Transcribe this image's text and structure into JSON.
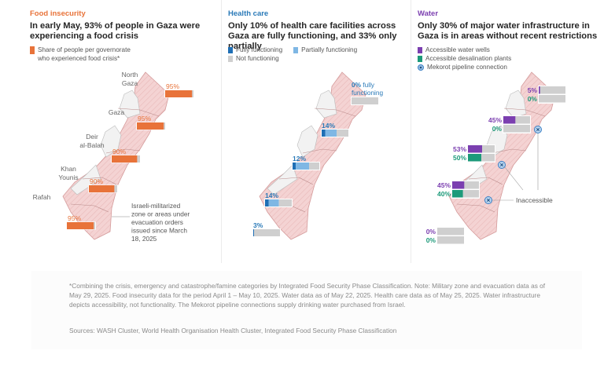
{
  "colors": {
    "food": "#e8733a",
    "health_full": "#1f6fb5",
    "health_partial": "#7fb7e4",
    "not_functioning": "#cfcfcf",
    "water_wells": "#7b3fb0",
    "water_desal": "#1d9a7a",
    "pipeline": "#3b7fc4",
    "map_fill": "#f4d3d3",
    "map_free": "#f2f2f2",
    "food_kicker": "#e8733a",
    "health_kicker": "#2a7ab8",
    "water_kicker": "#7b3fb0"
  },
  "panels": {
    "food": {
      "kicker": "Food insecurity",
      "headline": "In early May, 93% of people in Gaza were experiencing a food crisis",
      "legend": [
        "Share of people per governorate",
        "who experienced food crisis*"
      ],
      "annotation": [
        "Israeli-militarized",
        "zone or areas under",
        "evacuation orders",
        "issued since March",
        "18, 2025"
      ]
    },
    "health": {
      "kicker": "Health care",
      "headline": "Only 10% of health care facilities across Gaza are fully functioning, and 33% only partially",
      "legend": {
        "full": "Fully functioning",
        "partial": "Partially functioning",
        "not": "Not functioning"
      },
      "north_label": [
        "0% fully",
        "functioning"
      ]
    },
    "water": {
      "kicker": "Water",
      "headline": "Only 30% of major water infrastructure in Gaza is in areas without recent restrictions",
      "legend": {
        "wells": "Accessible water wells",
        "desal": "Accessible desalination plants",
        "pipeline": "Mekorot pipeline connection"
      },
      "inaccessible_label": "Inaccessible"
    }
  },
  "chart_data": [
    {
      "type": "bar",
      "title": "In early May, 93% of people in Gaza were experiencing a food crisis",
      "categories": [
        "North Gaza",
        "Gaza",
        "Deir al-Balah",
        "Khan Younis",
        "Rafah"
      ],
      "series": [
        {
          "name": "Share of people per governorate who experienced food crisis",
          "values": [
            95,
            95,
            90,
            90,
            95
          ]
        }
      ],
      "unit": "%",
      "ylim": [
        0,
        100
      ]
    },
    {
      "type": "bar",
      "stacked": true,
      "title": "Only 10% of health care facilities across Gaza are fully functioning, and 33% only partially",
      "categories": [
        "North Gaza",
        "Gaza",
        "Deir al-Balah",
        "Khan Younis",
        "Rafah"
      ],
      "labels": [
        "0%",
        "14%",
        "12%",
        "14%",
        "3%"
      ],
      "series": [
        {
          "name": "Fully functioning",
          "values": [
            0,
            14,
            12,
            14,
            3
          ]
        },
        {
          "name": "Partially functioning",
          "values": [
            0,
            42,
            50,
            38,
            0
          ]
        },
        {
          "name": "Not functioning",
          "values": [
            100,
            44,
            38,
            48,
            97
          ]
        }
      ],
      "unit": "%",
      "ylim": [
        0,
        100
      ]
    },
    {
      "type": "bar",
      "title": "Only 30% of major water infrastructure in Gaza is in areas without recent restrictions",
      "categories": [
        "North Gaza",
        "Gaza",
        "Deir al-Balah",
        "Khan Younis",
        "Rafah"
      ],
      "series": [
        {
          "name": "Accessible water wells",
          "values": [
            5,
            45,
            53,
            45,
            0
          ]
        },
        {
          "name": "Accessible desalination plants",
          "values": [
            0,
            0,
            50,
            40,
            0
          ]
        }
      ],
      "pipeline_connections": {
        "count": 3,
        "status": "Inaccessible"
      },
      "unit": "%",
      "ylim": [
        0,
        100
      ]
    }
  ],
  "footer": {
    "note": "*Combining the crisis, emergency and catastrophe/famine categories by Integrated Food Security Phase Classification. Note: Military zone and evacuation data as of May 29, 2025. Food insecurity data for the period April 1 – May 10, 2025. Water data as of May 22, 2025. Health care data as of May 25, 2025. Water infrastructure depicts accessibility, not functionality. The Mekorot pipeline connections supply drinking water purchased from Israel.",
    "sources": "Sources: WASH Cluster, World Health Organisation Health Cluster, Integrated Food Security Phase Classification"
  }
}
